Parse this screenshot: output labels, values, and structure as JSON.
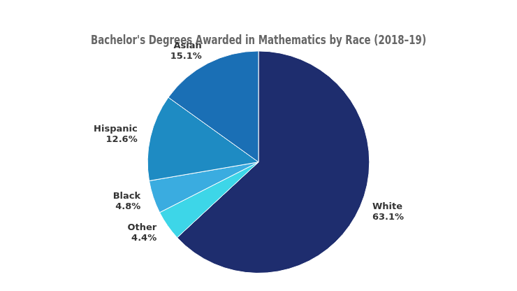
{
  "chart_data": {
    "type": "pie",
    "title": "Bachelor's Degrees Awarded in Mathematics by Race (2018–19)",
    "categories": [
      "White",
      "Other",
      "Black",
      "Hispanic",
      "Asian"
    ],
    "values": [
      63.1,
      4.4,
      4.8,
      12.6,
      15.1
    ],
    "value_labels": [
      "63.1%",
      "4.4%",
      "4.8%",
      "12.6%",
      "15.1%"
    ],
    "colors": [
      "#1e2d6e",
      "#3dd6e8",
      "#3aace0",
      "#1e8bc3",
      "#1a6fb5"
    ],
    "data_labels": true,
    "legend": false
  }
}
